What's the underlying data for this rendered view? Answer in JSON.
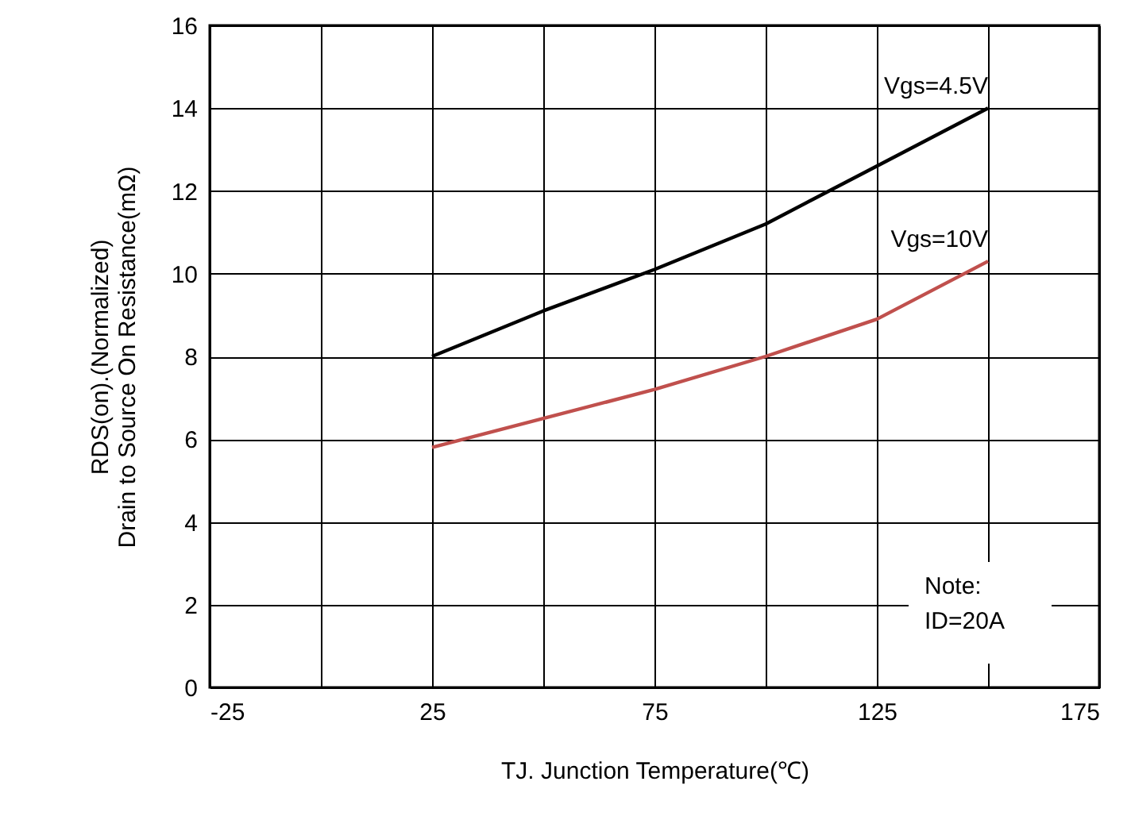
{
  "chart_data": {
    "type": "line",
    "xlabel": "TJ. Junction Temperature(℃)",
    "ylabel": "RDS(on).(Normalized)\nDrain to Source On Resistance(mΩ)",
    "x": [
      25,
      50,
      75,
      100,
      125,
      150
    ],
    "series": [
      {
        "name": "Vgs=4.5V",
        "color": "#000000",
        "values": [
          8.0,
          9.1,
          10.1,
          11.2,
          12.6,
          14.0
        ]
      },
      {
        "name": "Vgs=10V",
        "color": "#c0504d",
        "values": [
          5.8,
          6.5,
          7.2,
          8.0,
          8.9,
          10.3
        ]
      }
    ],
    "xlim": [
      -25,
      175
    ],
    "xticks": [
      -25,
      {
        "value": 0,
        "label": null
      },
      25,
      {
        "value": 50,
        "label": null
      },
      75,
      {
        "value": 100,
        "label": null
      },
      125,
      {
        "value": 150,
        "label": null
      },
      175
    ],
    "ylim": [
      0,
      16
    ],
    "yticks": [
      0,
      2,
      4,
      6,
      8,
      10,
      12,
      14,
      16
    ],
    "grid": true,
    "marker": "none",
    "line_style": "solid",
    "annotations": [
      "Note:\nID=20A"
    ]
  }
}
